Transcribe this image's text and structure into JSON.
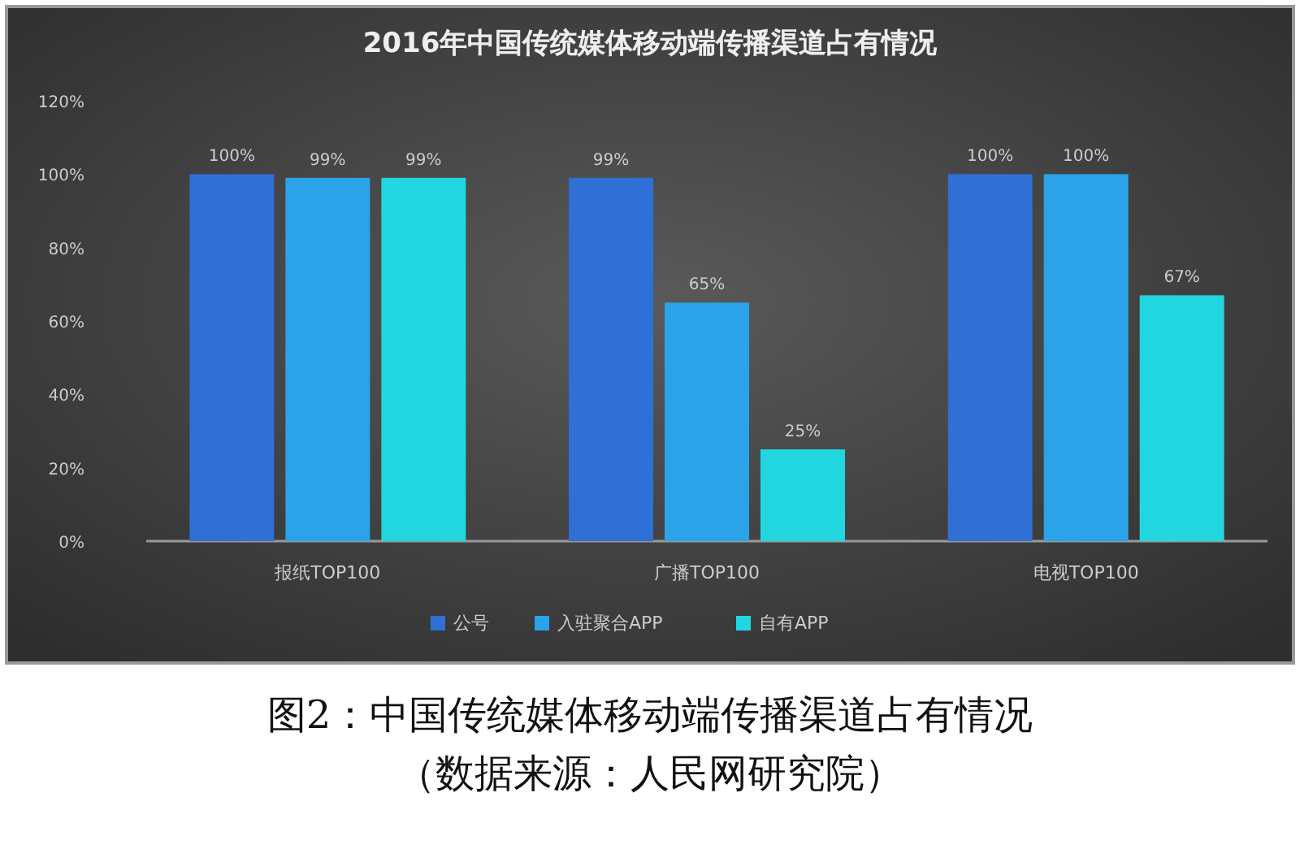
{
  "chart_data": {
    "type": "bar",
    "title": "2016年中国传统媒体移动端传播渠道占有情况",
    "categories": [
      "报纸TOP100",
      "广播TOP100",
      "电视TOP100"
    ],
    "series": [
      {
        "name": "公号",
        "color": "#2f6fd6",
        "values": [
          100,
          99,
          100
        ],
        "value_labels": [
          "100%",
          "99%",
          "100%"
        ]
      },
      {
        "name": "入驻聚合APP",
        "color": "#2aa3e8",
        "values": [
          99,
          65,
          100
        ],
        "value_labels": [
          "99%",
          "65%",
          "100%"
        ]
      },
      {
        "name": "自有APP",
        "color": "#22d6e0",
        "values": [
          99,
          25,
          67
        ],
        "value_labels": [
          "99%",
          "25%",
          "67%"
        ]
      }
    ],
    "ylim": [
      0,
      120
    ],
    "yticks": [
      {
        "value": 0,
        "label": "0%"
      },
      {
        "value": 20,
        "label": "20%"
      },
      {
        "value": 40,
        "label": "40%"
      },
      {
        "value": 60,
        "label": "60%"
      },
      {
        "value": 80,
        "label": "80%"
      },
      {
        "value": 100,
        "label": "100%"
      },
      {
        "value": 120,
        "label": "120%"
      }
    ],
    "legend": "bottom",
    "annotations": [
      "图2：中国传统媒体移动端传播渠道占有情况",
      "（数据来源：人民网研究院）"
    ]
  }
}
